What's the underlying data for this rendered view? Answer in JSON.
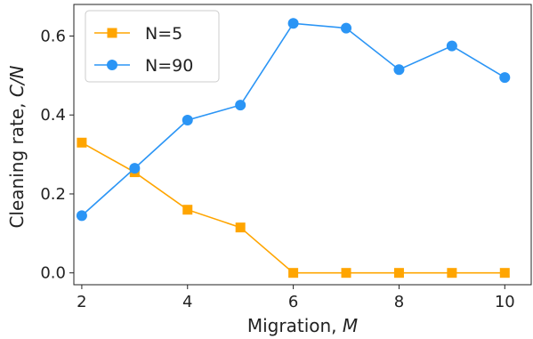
{
  "chart_data": {
    "type": "line",
    "xlabel": {
      "main": "Migration, ",
      "var": "M"
    },
    "ylabel": {
      "main": "Cleaning rate, ",
      "var": "C/N"
    },
    "xlim": [
      1.85,
      10.5
    ],
    "ylim": [
      -0.03,
      0.68
    ],
    "xticks": [
      2,
      4,
      6,
      8,
      10
    ],
    "yticks": [
      0.0,
      0.2,
      0.4,
      0.6
    ],
    "ytick_labels": [
      "0.0",
      "0.2",
      "0.4",
      "0.6"
    ],
    "grid": false,
    "legend": "top-left",
    "series": [
      {
        "name": "N=5",
        "color": "#FFA500",
        "marker": "square",
        "x": [
          2,
          3,
          4,
          5,
          6,
          7,
          8,
          9,
          10
        ],
        "y": [
          0.33,
          0.255,
          0.16,
          0.115,
          0.0,
          0.0,
          0.0,
          0.0,
          0.0
        ]
      },
      {
        "name": "N=90",
        "color": "#2B95F5",
        "marker": "circle",
        "x": [
          2,
          3,
          4,
          5,
          6,
          7,
          8,
          9,
          10
        ],
        "y": [
          0.145,
          0.265,
          0.387,
          0.425,
          0.632,
          0.62,
          0.515,
          0.575,
          0.495
        ]
      }
    ]
  }
}
